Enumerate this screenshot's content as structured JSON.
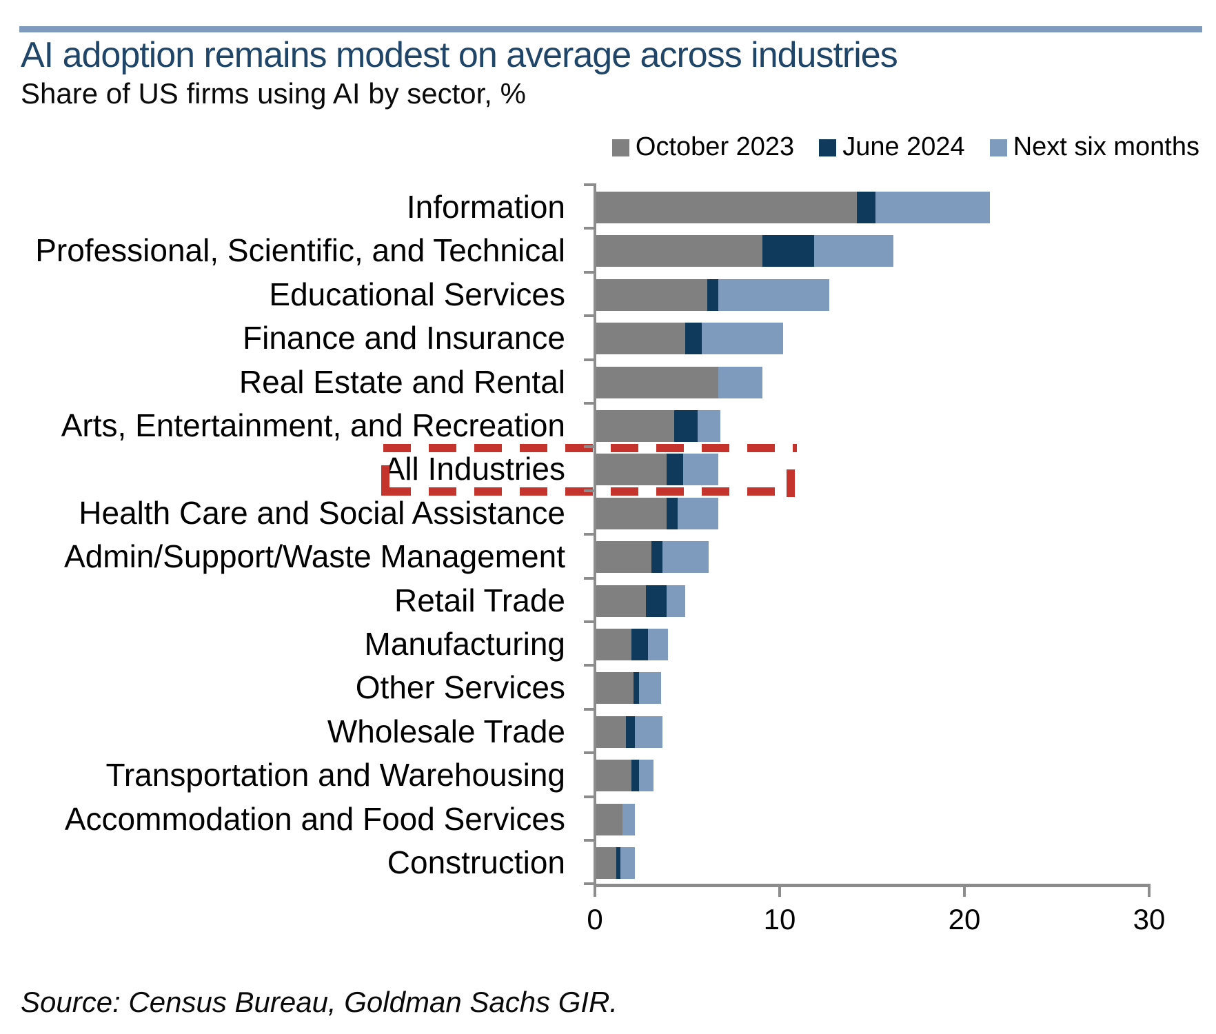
{
  "page": {
    "title": "AI adoption remains modest on average across industries",
    "subtitle": "Share of US firms using AI by sector, %",
    "source": "Source: Census Bureau, Goldman Sachs GIR."
  },
  "colors": {
    "accent_rule": "#7e9bbd",
    "title_text": "#1f4569",
    "october_2023": "#808080",
    "june_2024": "#103a5c",
    "next_six_months": "#7e9bbd",
    "highlight_red": "#c5332d",
    "axis": "#8c8c8c"
  },
  "chart_data": {
    "type": "bar",
    "orientation": "horizontal",
    "stacked": true,
    "title": "Share of US firms using AI by sector, %",
    "categories": [
      "Information",
      "Professional, Scientific, and Technical",
      "Educational Services",
      "Finance and Insurance",
      "Real Estate and Rental",
      "Arts, Entertainment, and Recreation",
      "All Industries",
      "Health Care and Social Assistance",
      "Admin/Support/Waste Management",
      "Retail Trade",
      "Manufacturing",
      "Other Services",
      "Wholesale Trade",
      "Transportation and Warehousing",
      "Accommodation and Food Services",
      "Construction"
    ],
    "series": [
      {
        "name": "October 2023",
        "values": [
          14.1,
          9.0,
          6.0,
          4.8,
          6.6,
          4.2,
          3.8,
          3.8,
          3.0,
          2.7,
          1.9,
          2.0,
          1.6,
          1.9,
          1.4,
          1.1
        ]
      },
      {
        "name": "June 2024",
        "values": [
          15.1,
          11.8,
          6.6,
          5.7,
          6.6,
          5.5,
          4.7,
          4.4,
          3.6,
          3.8,
          2.8,
          2.3,
          2.1,
          2.3,
          1.4,
          1.3
        ]
      },
      {
        "name": "Next six months",
        "values": [
          21.3,
          16.1,
          12.6,
          10.1,
          9.0,
          6.7,
          6.6,
          6.6,
          6.1,
          4.8,
          3.9,
          3.5,
          3.6,
          3.1,
          2.1,
          2.1
        ]
      }
    ],
    "series_note": "Values are cumulative shares (%); bars stack the June 2024 and next-six-months increments on top of October 2023.",
    "xlim": [
      0,
      30
    ],
    "x_ticks": [
      0,
      10,
      20,
      30
    ],
    "highlighted_category": "All Industries",
    "legend_position": "top-right",
    "grid": false
  }
}
